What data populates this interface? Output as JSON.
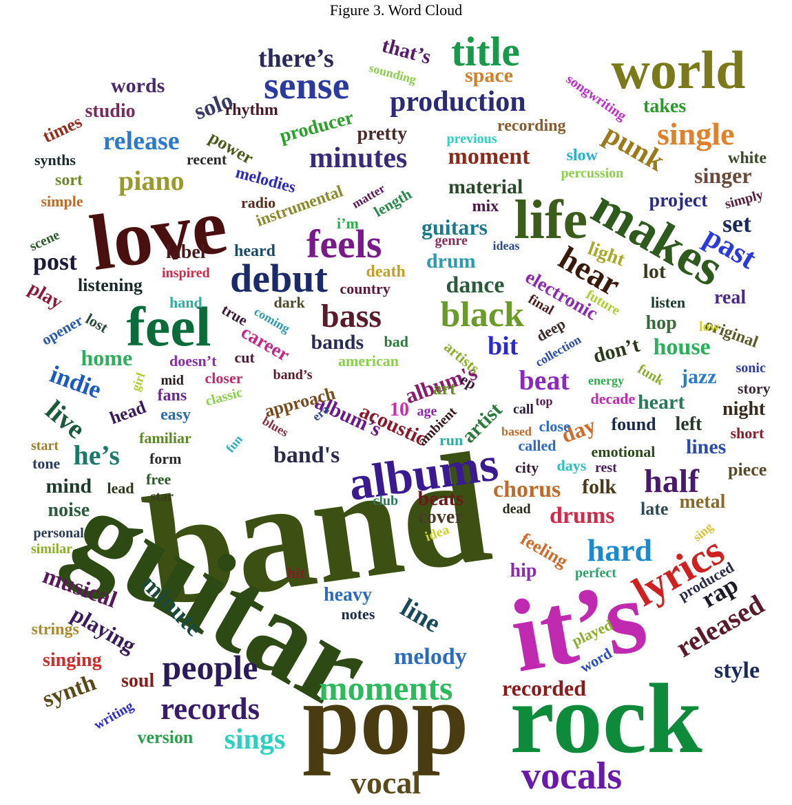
{
  "caption": "Figure 3. Word Cloud",
  "words": [
    {
      "text": "band",
      "color": "#3c5013"
    },
    {
      "text": "guitar",
      "color": "#2e4a14"
    },
    {
      "text": "it’s",
      "color": "#c02ab0"
    },
    {
      "text": "pop",
      "color": "#4a3c10"
    },
    {
      "text": "rock",
      "color": "#0d8a3a"
    },
    {
      "text": "love",
      "color": "#4a1010"
    },
    {
      "text": "world",
      "color": "#7a7a1a"
    },
    {
      "text": "feel",
      "color": "#0b6b3a"
    },
    {
      "text": "albums",
      "color": "#3a1a90"
    },
    {
      "text": "life",
      "color": "#3b5c1a"
    },
    {
      "text": "makes",
      "color": "#2e5a1e"
    },
    {
      "text": "sense",
      "color": "#2a3aa0"
    },
    {
      "text": "title",
      "color": "#179a4a"
    },
    {
      "text": "feels",
      "color": "#7a1a8a"
    },
    {
      "text": "debut",
      "color": "#1a2a6a"
    },
    {
      "text": "lyrics",
      "color": "#d02020"
    },
    {
      "text": "vocals",
      "color": "#6a1aaa"
    },
    {
      "text": "moments",
      "color": "#2abb5a"
    },
    {
      "text": "people",
      "color": "#2a1a5a"
    },
    {
      "text": "records",
      "color": "#3a1a6a"
    },
    {
      "text": "black",
      "color": "#6a9a2a"
    },
    {
      "text": "bass",
      "color": "#5a1a2a"
    },
    {
      "text": "production",
      "color": "#2a2a7a"
    },
    {
      "text": "minutes",
      "color": "#3a2a7a"
    },
    {
      "text": "hear",
      "color": "#3a1a0a"
    },
    {
      "text": "past",
      "color": "#2a3adf"
    },
    {
      "text": "single",
      "color": "#e0802a"
    },
    {
      "text": "punk",
      "color": "#9a7a1a"
    },
    {
      "text": "half",
      "color": "#4a1a6a"
    },
    {
      "text": "hard",
      "color": "#1a8ad0"
    },
    {
      "text": "vocal",
      "color": "#5a4a1a"
    },
    {
      "text": "sings",
      "color": "#2ad0c0"
    },
    {
      "text": "released",
      "color": "#5a1a2a"
    },
    {
      "text": "piano",
      "color": "#9a9a2a"
    },
    {
      "text": "release",
      "color": "#2a7ad0"
    },
    {
      "text": "beat",
      "color": "#8a2ac0"
    },
    {
      "text": "line",
      "color": "#1a4a5a"
    },
    {
      "text": "minute",
      "color": "#1a4a3a"
    },
    {
      "text": "musical",
      "color": "#5a1a5a"
    },
    {
      "text": "live",
      "color": "#1a5a3a"
    },
    {
      "text": "indie",
      "color": "#1a5ac0"
    },
    {
      "text": "he’s",
      "color": "#1a7a6a"
    },
    {
      "text": "band's",
      "color": "#2a2a4a"
    },
    {
      "text": "album's",
      "color": "#8a1a6a"
    },
    {
      "text": "album’s",
      "color": "#6a1a8a"
    },
    {
      "text": "acoustic",
      "color": "#8a1a2a"
    },
    {
      "text": "drums",
      "color": "#d02a4a"
    },
    {
      "text": "chorus",
      "color": "#c06a2a"
    },
    {
      "text": "melody",
      "color": "#2a6ac0"
    },
    {
      "text": "recorded",
      "color": "#8a1a1a"
    },
    {
      "text": "style",
      "color": "#1a2a5a"
    },
    {
      "text": "rap",
      "color": "#1a1a2a"
    },
    {
      "text": "synth",
      "color": "#5a4a1a"
    },
    {
      "text": "playing",
      "color": "#3a1a5a"
    },
    {
      "text": "house",
      "color": "#2ab05a"
    },
    {
      "text": "dance",
      "color": "#2a5a3a"
    },
    {
      "text": "guitars",
      "color": "#1a7a8a"
    },
    {
      "text": "moment",
      "color": "#8a2a1a"
    },
    {
      "text": "solo",
      "color": "#3a3a6a"
    },
    {
      "text": "there’s",
      "color": "#2a2a5a"
    },
    {
      "text": "that’s",
      "color": "#5a1a6a"
    },
    {
      "text": "space",
      "color": "#d0802a"
    },
    {
      "text": "words",
      "color": "#4a2a6a"
    },
    {
      "text": "studio",
      "color": "#7a2a5a"
    },
    {
      "text": "times",
      "color": "#9a2a1a"
    },
    {
      "text": "rhythm",
      "color": "#4a1a2a"
    },
    {
      "text": "producer",
      "color": "#2aa02a"
    },
    {
      "text": "pretty",
      "color": "#4a2a2a"
    },
    {
      "text": "power",
      "color": "#4a5a1a"
    },
    {
      "text": "recording",
      "color": "#8a5a2a"
    },
    {
      "text": "takes",
      "color": "#2a9a2a"
    },
    {
      "text": "white",
      "color": "#3a4a2a"
    },
    {
      "text": "singer",
      "color": "#6a4a3a"
    },
    {
      "text": "set",
      "color": "#1a2a5a"
    },
    {
      "text": "lot",
      "color": "#3a3a1a"
    },
    {
      "text": "light",
      "color": "#aaaa2a"
    },
    {
      "text": "real",
      "color": "#4a2a8a"
    },
    {
      "text": "original",
      "color": "#5a5a2a"
    },
    {
      "text": "hop",
      "color": "#3a6a3a"
    },
    {
      "text": "jazz",
      "color": "#2a7ad0"
    },
    {
      "text": "don’t",
      "color": "#2a3a1a"
    },
    {
      "text": "bit",
      "color": "#2a2ad0"
    },
    {
      "text": "bands",
      "color": "#2a2a5a"
    },
    {
      "text": "career",
      "color": "#c02a8a"
    },
    {
      "text": "post",
      "color": "#1a1a3a"
    },
    {
      "text": "label",
      "color": "#4a1a1a"
    },
    {
      "text": "drum",
      "color": "#2a9ab0"
    },
    {
      "text": "material",
      "color": "#2a4a2a"
    },
    {
      "text": "electronic",
      "color": "#8a2ab0"
    },
    {
      "text": "project",
      "color": "#2a2a8a"
    },
    {
      "text": "heart",
      "color": "#2a7a5a"
    },
    {
      "text": "night",
      "color": "#3a2a1a"
    },
    {
      "text": "lines",
      "color": "#2a4ab0"
    },
    {
      "text": "metal",
      "color": "#8a6a2a"
    },
    {
      "text": "late",
      "color": "#2a4a5a"
    },
    {
      "text": "folk",
      "color": "#4a3a1a"
    },
    {
      "text": "beats",
      "color": "#6a1a1a"
    },
    {
      "text": "cover",
      "color": "#4a3a2a"
    },
    {
      "text": "day",
      "color": "#d06a2a"
    },
    {
      "text": "artist",
      "color": "#2a7a3a"
    },
    {
      "text": "home",
      "color": "#2ab05a"
    },
    {
      "text": "play",
      "color": "#8a1a3a"
    },
    {
      "text": "mind",
      "color": "#1a3a2a"
    },
    {
      "text": "noise",
      "color": "#2a5a3a"
    },
    {
      "text": "hip",
      "color": "#8a2ab0"
    },
    {
      "text": "heavy",
      "color": "#2a6ac0"
    },
    {
      "text": "soul",
      "color": "#8a1a1a"
    },
    {
      "text": "singing",
      "color": "#d02a2a"
    },
    {
      "text": "strings",
      "color": "#aa8a2a"
    },
    {
      "text": "version",
      "color": "#2aa04a"
    },
    {
      "text": "writing",
      "color": "#2a2ad0"
    },
    {
      "text": "word",
      "color": "#2a4ad0"
    },
    {
      "text": "played",
      "color": "#8ab02a"
    },
    {
      "text": "produced",
      "color": "#2a2a4a"
    },
    {
      "text": "feeling",
      "color": "#d06a2a"
    },
    {
      "text": "perfect",
      "color": "#2aa06a"
    },
    {
      "text": "piece",
      "color": "#5a4a2a"
    },
    {
      "text": "listening",
      "color": "#1a2a2a"
    },
    {
      "text": "inspired",
      "color": "#d02a4a"
    },
    {
      "text": "heard",
      "color": "#1a4a6a"
    },
    {
      "text": "scene",
      "color": "#2a5a2a"
    },
    {
      "text": "radio",
      "color": "#5a2a1a"
    },
    {
      "text": "instrumental",
      "color": "#8a8a2a"
    },
    {
      "text": "matter",
      "color": "#5a1a5a"
    },
    {
      "text": "length",
      "color": "#2a8a4a"
    },
    {
      "text": "i’m",
      "color": "#2ab04a"
    },
    {
      "text": "mix",
      "color": "#4a1a4a"
    },
    {
      "text": "genre",
      "color": "#8a2a5a"
    },
    {
      "text": "ideas",
      "color": "#2a4a8a"
    },
    {
      "text": "death",
      "color": "#c0a02a"
    },
    {
      "text": "country",
      "color": "#5a1a3a"
    },
    {
      "text": "dark",
      "color": "#4a4a2a"
    },
    {
      "text": "final",
      "color": "#4a1a1a"
    },
    {
      "text": "future",
      "color": "#aad02a"
    },
    {
      "text": "listen",
      "color": "#1a3a2a"
    },
    {
      "text": "low",
      "color": "#d0d02a"
    },
    {
      "text": "sonic",
      "color": "#2a3ab0"
    },
    {
      "text": "story",
      "color": "#3a2a3a"
    },
    {
      "text": "short",
      "color": "#8a1a2a"
    },
    {
      "text": "found",
      "color": "#1a2a4a"
    },
    {
      "text": "left",
      "color": "#2a3a2a"
    },
    {
      "text": "emotional",
      "color": "#2a4a1a"
    },
    {
      "text": "rest",
      "color": "#4a1a5a"
    },
    {
      "text": "days",
      "color": "#2ac0c0"
    },
    {
      "text": "city",
      "color": "#3a1a3a"
    },
    {
      "text": "called",
      "color": "#2a6ad0"
    },
    {
      "text": "based",
      "color": "#c06a2a"
    },
    {
      "text": "close",
      "color": "#2a6ad0"
    },
    {
      "text": "call",
      "color": "#2a1a3a"
    },
    {
      "text": "top",
      "color": "#5a1a5a"
    },
    {
      "text": "decade",
      "color": "#c02ab0"
    },
    {
      "text": "energy",
      "color": "#2ab04a"
    },
    {
      "text": "funk",
      "color": "#8ab02a"
    },
    {
      "text": "deep",
      "color": "#3a2a2a"
    },
    {
      "text": "collection",
      "color": "#2a4ab0"
    },
    {
      "text": "coming",
      "color": "#2a9ab0"
    },
    {
      "text": "true",
      "color": "#3a1a3a"
    },
    {
      "text": "lost",
      "color": "#2a4a3a"
    },
    {
      "text": "opener",
      "color": "#2a5ab0"
    },
    {
      "text": "hand",
      "color": "#2ab0a0"
    },
    {
      "text": "cut",
      "color": "#4a1a3a"
    },
    {
      "text": "doesn’t",
      "color": "#8a2ab0"
    },
    {
      "text": "mid",
      "color": "#2a1a1a"
    },
    {
      "text": "closer",
      "color": "#c02a6a"
    },
    {
      "text": "band’s",
      "color": "#5a1a2a"
    },
    {
      "text": "approach",
      "color": "#7a4a1a"
    },
    {
      "text": "girl",
      "color": "#aad02a"
    },
    {
      "text": "american",
      "color": "#8ad04a"
    },
    {
      "text": "bad",
      "color": "#2a7a3a"
    },
    {
      "text": "artists",
      "color": "#8ab02a"
    },
    {
      "text": "ep",
      "color": "#3a1a3a"
    },
    {
      "text": "art",
      "color": "#6a8a2a"
    },
    {
      "text": "10",
      "color": "#d02ab0"
    },
    {
      "text": "age",
      "color": "#8a2ab0"
    },
    {
      "text": "ambient",
      "color": "#3a1a1a"
    },
    {
      "text": "era",
      "color": "#2a4a8a"
    },
    {
      "text": "blues",
      "color": "#8a2a3a"
    },
    {
      "text": "run",
      "color": "#2ab0a0"
    },
    {
      "text": "fans",
      "color": "#6a2a8a"
    },
    {
      "text": "classic",
      "color": "#8ad04a"
    },
    {
      "text": "head",
      "color": "#3a1a5a"
    },
    {
      "text": "easy",
      "color": "#2a6ab0"
    },
    {
      "text": "familiar",
      "color": "#5a8a2a"
    },
    {
      "text": "fun",
      "color": "#2ab0c0"
    },
    {
      "text": "start",
      "color": "#a0802a"
    },
    {
      "text": "tone",
      "color": "#2a3a6a"
    },
    {
      "text": "form",
      "color": "#2a2a2a"
    },
    {
      "text": "free",
      "color": "#2a5a2a"
    },
    {
      "text": "lead",
      "color": "#2a3a1a"
    },
    {
      "text": "star",
      "color": "#3a3a1a"
    },
    {
      "text": "club",
      "color": "#2a7a5a"
    },
    {
      "text": "idea",
      "color": "#d0d02a"
    },
    {
      "text": "dead",
      "color": "#2a2a1a"
    },
    {
      "text": "hit",
      "color": "#8a1a2a"
    },
    {
      "text": "notes",
      "color": "#1a2a4a"
    },
    {
      "text": "personal",
      "color": "#2a3a5a"
    },
    {
      "text": "similar",
      "color": "#8ab02a"
    },
    {
      "text": "sing",
      "color": "#e0c02a"
    },
    {
      "text": "synths",
      "color": "#1a2a2a"
    },
    {
      "text": "sort",
      "color": "#6a8a2a"
    },
    {
      "text": "simple",
      "color": "#c06a2a"
    },
    {
      "text": "recent",
      "color": "#2a2a2a"
    },
    {
      "text": "melodies",
      "color": "#2a2ac0"
    },
    {
      "text": "sounding",
      "color": "#8ad04a"
    },
    {
      "text": "previous",
      "color": "#2ad0c0"
    },
    {
      "text": "slow",
      "color": "#2ab0d0"
    },
    {
      "text": "percussion",
      "color": "#8ad04a"
    },
    {
      "text": "songwriting",
      "color": "#c02ad0"
    },
    {
      "text": "simply",
      "color": "#5a1a3a"
    }
  ]
}
